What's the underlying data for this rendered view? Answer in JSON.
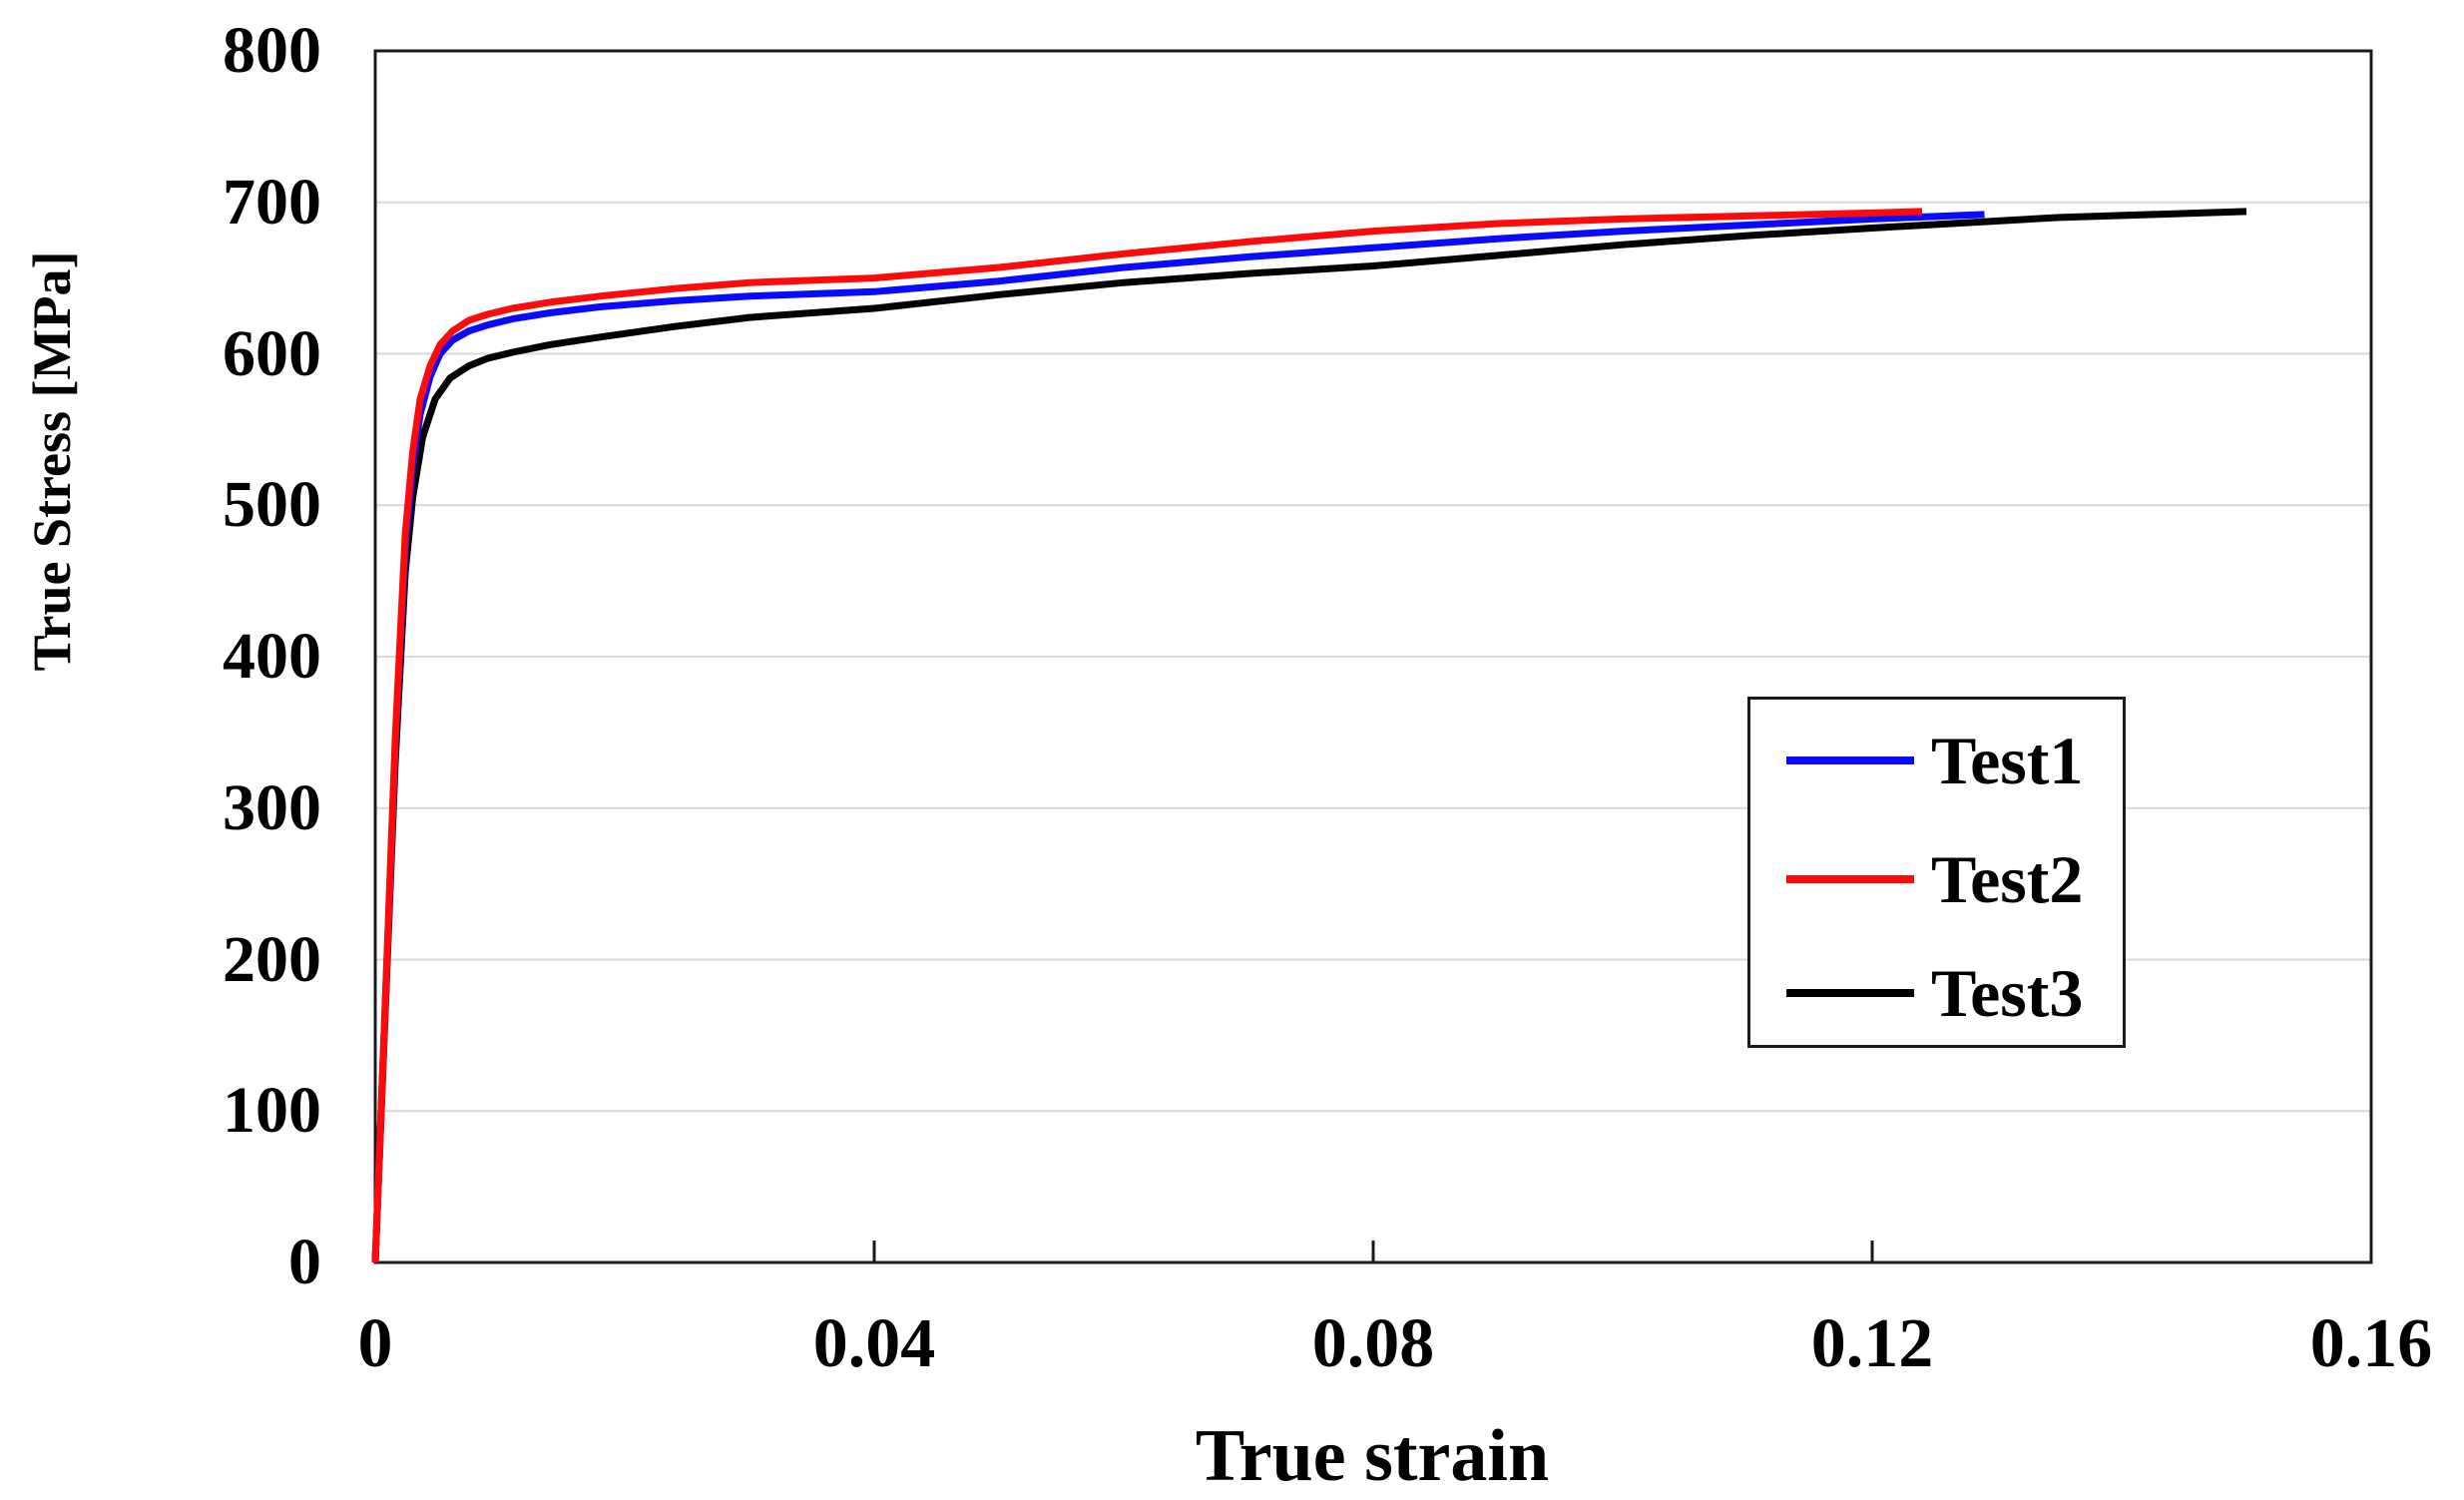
{
  "chart_data": {
    "type": "line",
    "title": "",
    "xlabel": "True strain",
    "ylabel": "True Stress [MPa]",
    "xlim": [
      0,
      0.16
    ],
    "ylim": [
      0,
      800
    ],
    "xticks": {
      "values": [
        0,
        0.04,
        0.08,
        0.12,
        0.16
      ],
      "labels": [
        "0",
        "0.04",
        "0.08",
        "0.12",
        "0.16"
      ]
    },
    "yticks": {
      "values": [
        0,
        100,
        200,
        300,
        400,
        500,
        600,
        700,
        800
      ],
      "labels": [
        "0",
        "100",
        "200",
        "300",
        "400",
        "500",
        "600",
        "700",
        "800"
      ]
    },
    "grid": "horizontal-only",
    "grid_color": "#d9d9d9",
    "frame_color": "#1a1a1a",
    "legend_position": "inside-right",
    "series": [
      {
        "name": "Test3",
        "color": "#000000",
        "points": [
          [
            0,
            0
          ],
          [
            0.0008,
            165
          ],
          [
            0.0016,
            330
          ],
          [
            0.0024,
            455
          ],
          [
            0.003,
            505
          ],
          [
            0.0038,
            545
          ],
          [
            0.0048,
            570
          ],
          [
            0.006,
            584
          ],
          [
            0.0075,
            592
          ],
          [
            0.009,
            597
          ],
          [
            0.011,
            601
          ],
          [
            0.014,
            606
          ],
          [
            0.018,
            611
          ],
          [
            0.024,
            618
          ],
          [
            0.03,
            624
          ],
          [
            0.04,
            630
          ],
          [
            0.05,
            639
          ],
          [
            0.06,
            647
          ],
          [
            0.07,
            653
          ],
          [
            0.08,
            658
          ],
          [
            0.09,
            665
          ],
          [
            0.1,
            672
          ],
          [
            0.11,
            678
          ],
          [
            0.12,
            683
          ],
          [
            0.135,
            690
          ],
          [
            0.15,
            694
          ]
        ]
      },
      {
        "name": "Test1",
        "color": "#0a0aff",
        "points": [
          [
            0,
            0
          ],
          [
            0.0008,
            170
          ],
          [
            0.0016,
            340
          ],
          [
            0.0024,
            470
          ],
          [
            0.003,
            525
          ],
          [
            0.0036,
            560
          ],
          [
            0.0044,
            585
          ],
          [
            0.0052,
            600
          ],
          [
            0.0062,
            609
          ],
          [
            0.0075,
            615
          ],
          [
            0.009,
            619
          ],
          [
            0.011,
            623
          ],
          [
            0.014,
            627
          ],
          [
            0.018,
            631
          ],
          [
            0.024,
            635
          ],
          [
            0.03,
            638
          ],
          [
            0.04,
            641
          ],
          [
            0.05,
            648
          ],
          [
            0.06,
            657
          ],
          [
            0.07,
            664
          ],
          [
            0.08,
            670
          ],
          [
            0.09,
            676
          ],
          [
            0.1,
            681
          ],
          [
            0.11,
            685
          ],
          [
            0.12,
            689
          ],
          [
            0.129,
            692
          ]
        ]
      },
      {
        "name": "Test2",
        "color": "#ff0a0a",
        "points": [
          [
            0,
            0
          ],
          [
            0.0008,
            170
          ],
          [
            0.0016,
            345
          ],
          [
            0.0024,
            480
          ],
          [
            0.003,
            535
          ],
          [
            0.0036,
            570
          ],
          [
            0.0044,
            592
          ],
          [
            0.0052,
            606
          ],
          [
            0.0062,
            615
          ],
          [
            0.0075,
            622
          ],
          [
            0.009,
            626
          ],
          [
            0.011,
            630
          ],
          [
            0.014,
            634
          ],
          [
            0.018,
            638
          ],
          [
            0.024,
            643
          ],
          [
            0.03,
            647
          ],
          [
            0.04,
            650
          ],
          [
            0.05,
            657
          ],
          [
            0.06,
            666
          ],
          [
            0.07,
            674
          ],
          [
            0.08,
            681
          ],
          [
            0.09,
            686
          ],
          [
            0.1,
            689
          ],
          [
            0.11,
            691
          ],
          [
            0.12,
            693
          ],
          [
            0.124,
            694
          ]
        ]
      }
    ],
    "legend_order": [
      "Test1",
      "Test2",
      "Test3"
    ]
  }
}
